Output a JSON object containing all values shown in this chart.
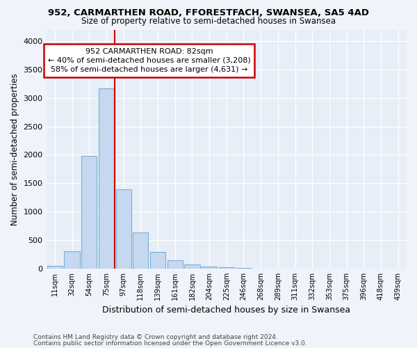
{
  "title1": "952, CARMARTHEN ROAD, FFORESTFACH, SWANSEA, SA5 4AD",
  "title2": "Size of property relative to semi-detached houses in Swansea",
  "xlabel": "Distribution of semi-detached houses by size in Swansea",
  "ylabel": "Number of semi-detached properties",
  "footer1": "Contains HM Land Registry data © Crown copyright and database right 2024.",
  "footer2": "Contains public sector information licensed under the Open Government Licence v3.0.",
  "annotation_title": "952 CARMARTHEN ROAD: 82sqm",
  "annotation_line1": "← 40% of semi-detached houses are smaller (3,208)",
  "annotation_line2": "58% of semi-detached houses are larger (4,631) →",
  "bar_color": "#c5d8ef",
  "bar_edge_color": "#7aadd4",
  "vline_color": "#cc0000",
  "annotation_box_edgecolor": "#cc0000",
  "categories": [
    "11sqm",
    "32sqm",
    "54sqm",
    "75sqm",
    "97sqm",
    "118sqm",
    "139sqm",
    "161sqm",
    "182sqm",
    "204sqm",
    "225sqm",
    "246sqm",
    "268sqm",
    "289sqm",
    "311sqm",
    "332sqm",
    "353sqm",
    "375sqm",
    "396sqm",
    "418sqm",
    "439sqm"
  ],
  "values": [
    50,
    310,
    1980,
    3170,
    1390,
    640,
    295,
    140,
    75,
    40,
    18,
    8,
    4,
    2,
    1,
    1,
    1,
    1,
    1,
    1,
    1
  ],
  "ylim": [
    0,
    4200
  ],
  "yticks": [
    0,
    500,
    1000,
    1500,
    2000,
    2500,
    3000,
    3500,
    4000
  ],
  "vline_x": 3.5,
  "fig_bg_color": "#f0f4fa",
  "plot_bg_color": "#e8eef8",
  "grid_color": "#ffffff",
  "footer_color": "#444444"
}
